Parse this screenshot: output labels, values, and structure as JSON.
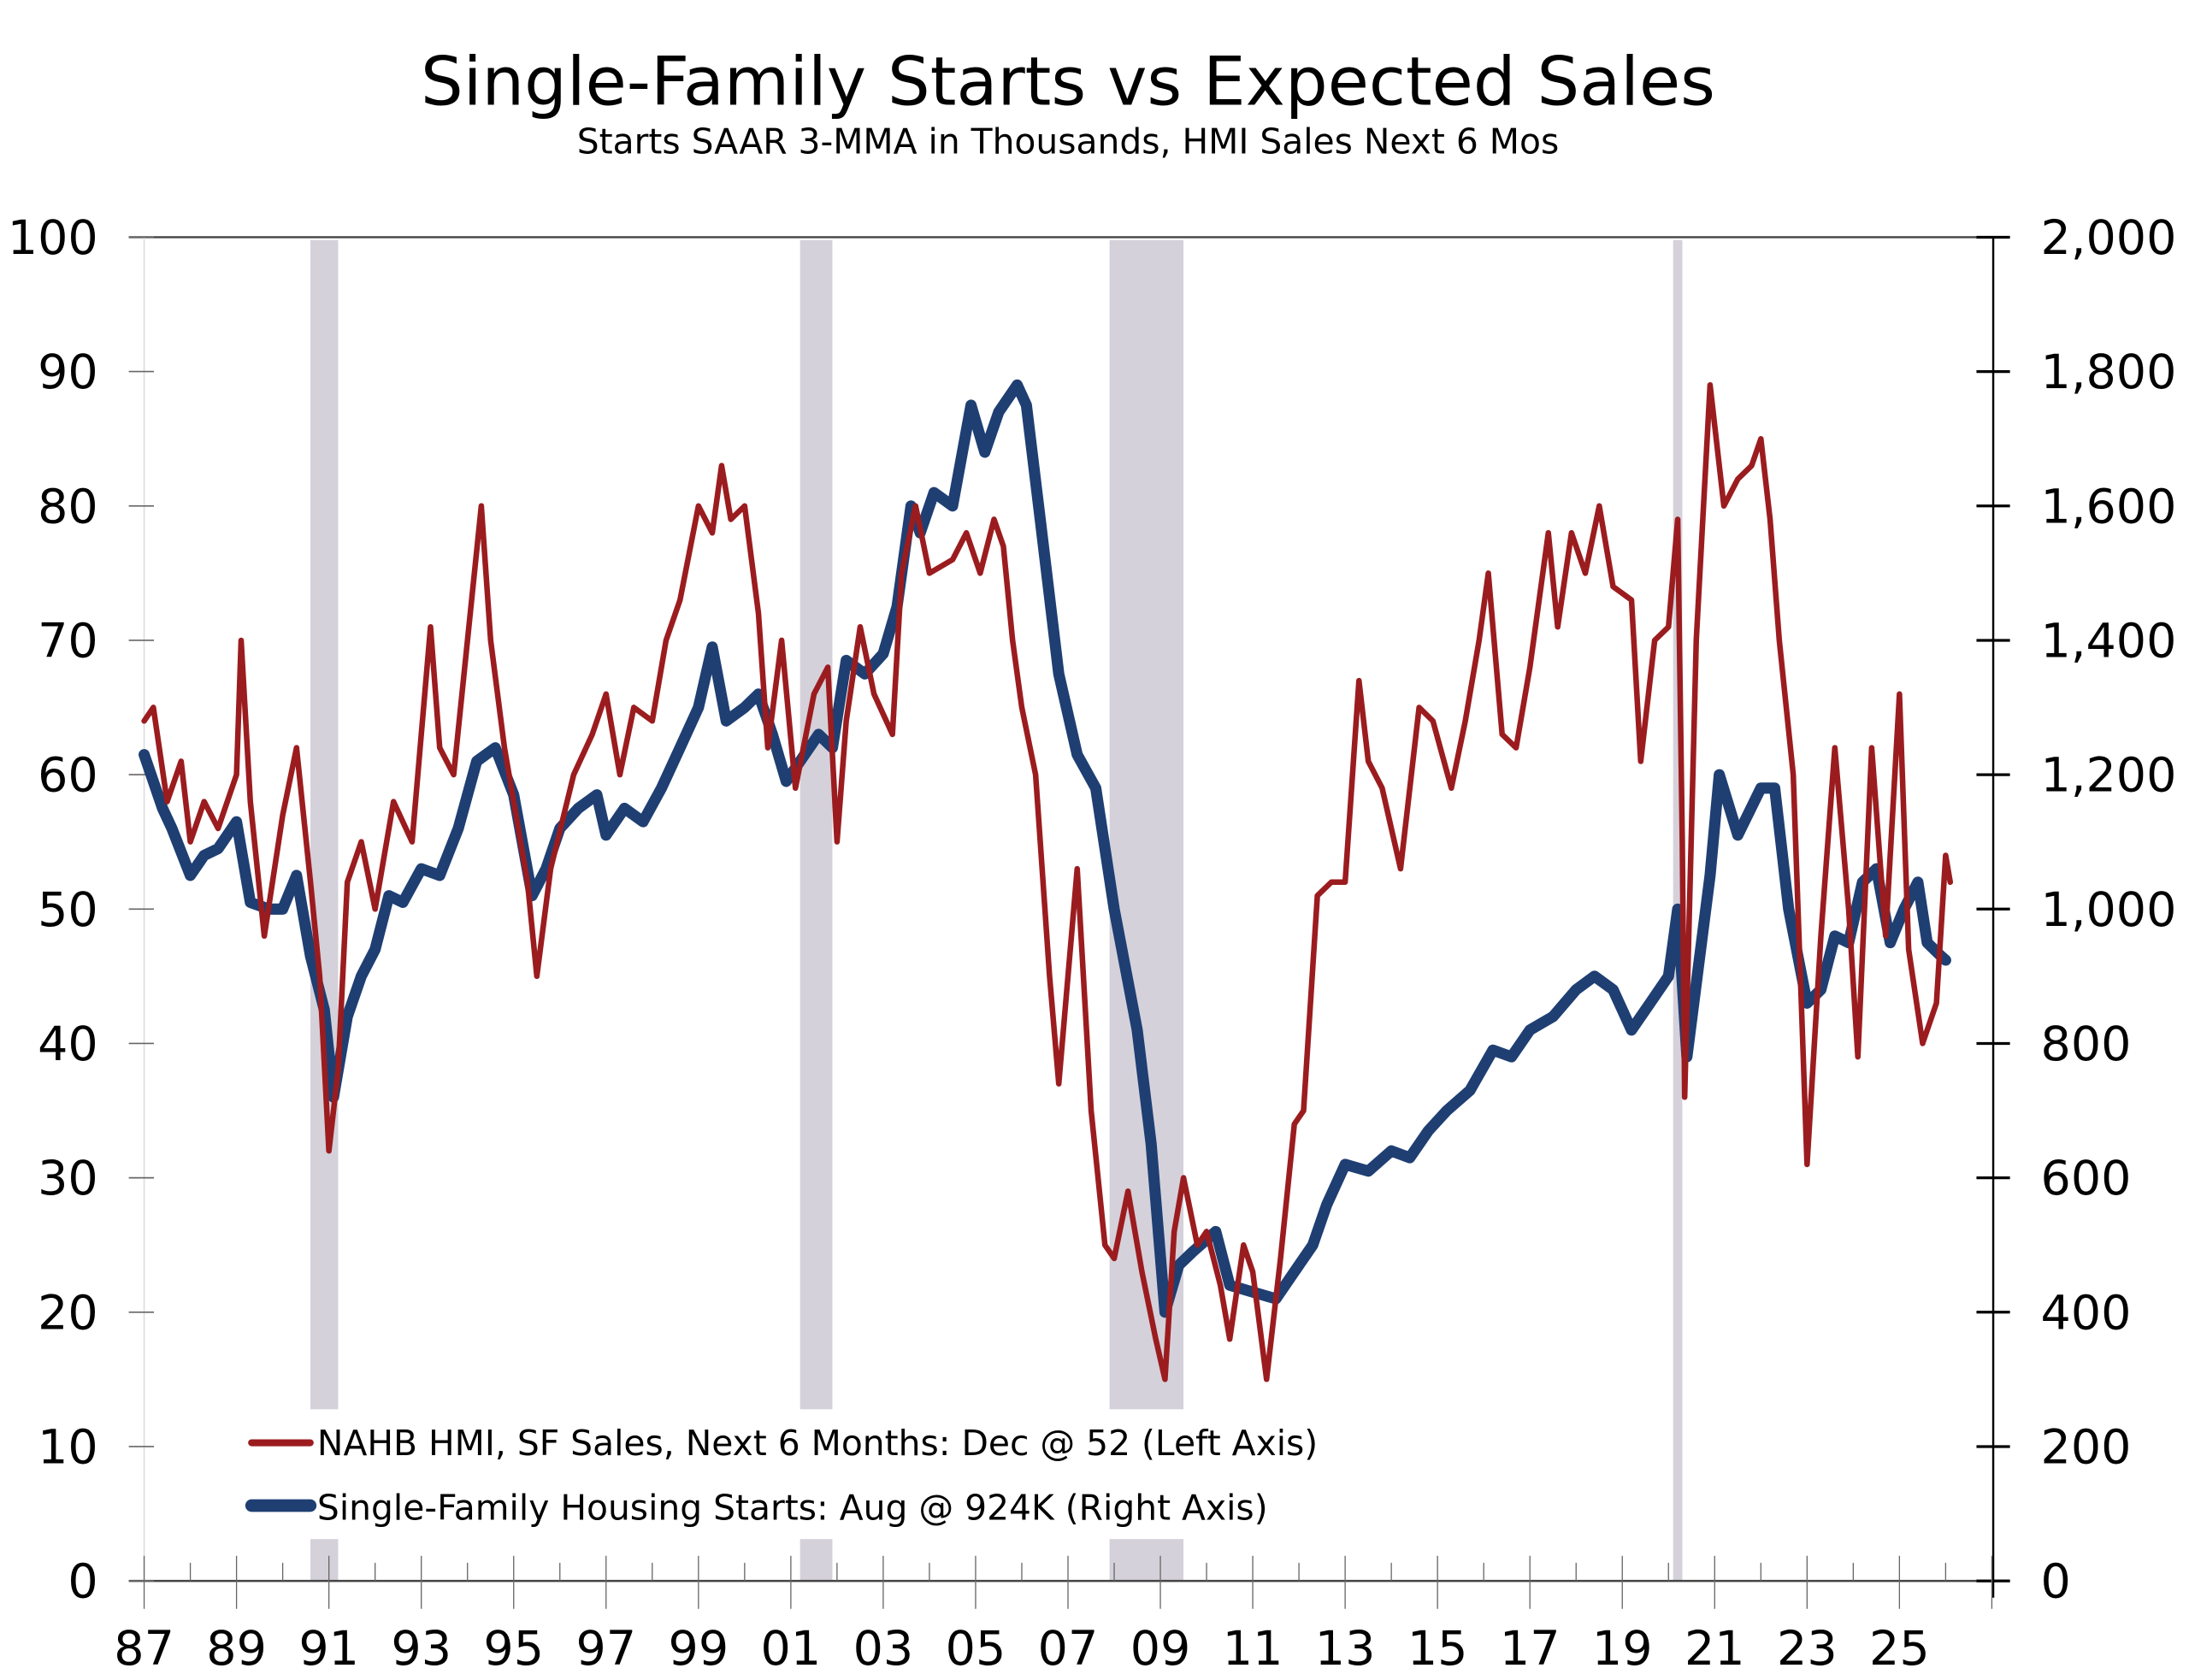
{
  "chart_data": {
    "type": "line",
    "title": "Single-Family Starts vs Expected Sales",
    "subtitle": "Starts SAAR 3-MMA in Thousands, HMI Sales Next 6 Mos",
    "xlim": [
      1987,
      2027
    ],
    "x_ticks": [
      {
        "year": 1987,
        "label": "87"
      },
      {
        "year": 1989,
        "label": "89"
      },
      {
        "year": 1991,
        "label": "91"
      },
      {
        "year": 1993,
        "label": "93"
      },
      {
        "year": 1995,
        "label": "95"
      },
      {
        "year": 1997,
        "label": "97"
      },
      {
        "year": 1999,
        "label": "99"
      },
      {
        "year": 2001,
        "label": "01"
      },
      {
        "year": 2003,
        "label": "03"
      },
      {
        "year": 2005,
        "label": "05"
      },
      {
        "year": 2007,
        "label": "07"
      },
      {
        "year": 2009,
        "label": "09"
      },
      {
        "year": 2011,
        "label": "11"
      },
      {
        "year": 2013,
        "label": "13"
      },
      {
        "year": 2015,
        "label": "15"
      },
      {
        "year": 2017,
        "label": "17"
      },
      {
        "year": 2019,
        "label": "19"
      },
      {
        "year": 2021,
        "label": "21"
      },
      {
        "year": 2023,
        "label": "23"
      },
      {
        "year": 2025,
        "label": "25"
      }
    ],
    "left_axis": {
      "ylim": [
        0,
        100
      ],
      "ticks": [
        "0",
        "10",
        "20",
        "30",
        "40",
        "50",
        "60",
        "70",
        "80",
        "90",
        "100"
      ]
    },
    "right_axis": {
      "ylim": [
        0,
        2000
      ],
      "ticks": [
        "0",
        "200",
        "400",
        "600",
        "800",
        "1,000",
        "1,200",
        "1,400",
        "1,600",
        "1,800",
        "2,000"
      ]
    },
    "recessions": [
      [
        1990.6,
        1991.2
      ],
      [
        2001.2,
        2001.9
      ],
      [
        2007.9,
        2009.5
      ],
      [
        2020.1,
        2020.3
      ]
    ],
    "colors": {
      "hmi": "#9b1c1f",
      "starts": "#1f3f73",
      "recession": "#d5d1da"
    },
    "series": [
      {
        "name": "NAHB HMI, SF Sales, Next 6 Months: Dec @ 52 (Left Axis)",
        "axis": "left",
        "points": [
          [
            1987.0,
            64
          ],
          [
            1987.2,
            65
          ],
          [
            1987.5,
            58
          ],
          [
            1987.8,
            61
          ],
          [
            1988.0,
            55
          ],
          [
            1988.3,
            58
          ],
          [
            1988.6,
            56
          ],
          [
            1989.0,
            60
          ],
          [
            1989.1,
            70
          ],
          [
            1989.3,
            58
          ],
          [
            1989.6,
            48
          ],
          [
            1990.0,
            57
          ],
          [
            1990.3,
            62
          ],
          [
            1990.6,
            52
          ],
          [
            1990.8,
            45
          ],
          [
            1991.0,
            32
          ],
          [
            1991.2,
            38
          ],
          [
            1991.4,
            52
          ],
          [
            1991.7,
            55
          ],
          [
            1992.0,
            50
          ],
          [
            1992.4,
            58
          ],
          [
            1992.8,
            55
          ],
          [
            1993.2,
            71
          ],
          [
            1993.4,
            62
          ],
          [
            1993.7,
            60
          ],
          [
            1994.0,
            70
          ],
          [
            1994.3,
            80
          ],
          [
            1994.5,
            70
          ],
          [
            1994.8,
            62
          ],
          [
            1995.3,
            52
          ],
          [
            1995.5,
            45
          ],
          [
            1995.8,
            53
          ],
          [
            1996.3,
            60
          ],
          [
            1996.7,
            63
          ],
          [
            1997.0,
            66
          ],
          [
            1997.3,
            60
          ],
          [
            1997.6,
            65
          ],
          [
            1998.0,
            64
          ],
          [
            1998.3,
            70
          ],
          [
            1998.6,
            73
          ],
          [
            1999.0,
            80
          ],
          [
            1999.3,
            78
          ],
          [
            1999.5,
            83
          ],
          [
            1999.7,
            79
          ],
          [
            2000.0,
            80
          ],
          [
            2000.3,
            72
          ],
          [
            2000.5,
            62
          ],
          [
            2000.8,
            70
          ],
          [
            2001.1,
            59
          ],
          [
            2001.5,
            66
          ],
          [
            2001.8,
            68
          ],
          [
            2002.0,
            55
          ],
          [
            2002.2,
            64
          ],
          [
            2002.5,
            71
          ],
          [
            2002.8,
            66
          ],
          [
            2003.2,
            63
          ],
          [
            2003.4,
            75
          ],
          [
            2003.7,
            80
          ],
          [
            2004.0,
            75
          ],
          [
            2004.5,
            76
          ],
          [
            2004.8,
            78
          ],
          [
            2005.1,
            75
          ],
          [
            2005.4,
            79
          ],
          [
            2005.6,
            77
          ],
          [
            2005.8,
            70
          ],
          [
            2006.0,
            65
          ],
          [
            2006.3,
            60
          ],
          [
            2006.6,
            45
          ],
          [
            2006.8,
            37
          ],
          [
            2007.0,
            45
          ],
          [
            2007.2,
            53
          ],
          [
            2007.5,
            35
          ],
          [
            2007.8,
            25
          ],
          [
            2008.0,
            24
          ],
          [
            2008.3,
            29
          ],
          [
            2008.6,
            23
          ],
          [
            2008.9,
            18
          ],
          [
            2009.1,
            15
          ],
          [
            2009.3,
            26
          ],
          [
            2009.5,
            30
          ],
          [
            2009.8,
            25
          ],
          [
            2010.0,
            26
          ],
          [
            2010.3,
            22
          ],
          [
            2010.5,
            18
          ],
          [
            2010.8,
            25
          ],
          [
            2011.0,
            23
          ],
          [
            2011.3,
            15
          ],
          [
            2011.6,
            24
          ],
          [
            2011.9,
            34
          ],
          [
            2012.1,
            35
          ],
          [
            2012.4,
            51
          ],
          [
            2012.7,
            52
          ],
          [
            2013.0,
            52
          ],
          [
            2013.3,
            67
          ],
          [
            2013.5,
            61
          ],
          [
            2013.8,
            59
          ],
          [
            2014.2,
            53
          ],
          [
            2014.6,
            65
          ],
          [
            2014.9,
            64
          ],
          [
            2015.3,
            59
          ],
          [
            2015.6,
            64
          ],
          [
            2015.9,
            70
          ],
          [
            2016.1,
            75
          ],
          [
            2016.4,
            63
          ],
          [
            2016.7,
            62
          ],
          [
            2017.0,
            68
          ],
          [
            2017.4,
            78
          ],
          [
            2017.6,
            71
          ],
          [
            2017.9,
            78
          ],
          [
            2018.2,
            75
          ],
          [
            2018.5,
            80
          ],
          [
            2018.8,
            74
          ],
          [
            2019.2,
            73
          ],
          [
            2019.4,
            61
          ],
          [
            2019.7,
            70
          ],
          [
            2020.0,
            71
          ],
          [
            2020.2,
            79
          ],
          [
            2020.3,
            55
          ],
          [
            2020.35,
            36
          ],
          [
            2020.6,
            70
          ],
          [
            2020.9,
            89
          ],
          [
            2021.2,
            80
          ],
          [
            2021.5,
            82
          ],
          [
            2021.8,
            83
          ],
          [
            2022.0,
            85
          ],
          [
            2022.2,
            79
          ],
          [
            2022.4,
            70
          ],
          [
            2022.7,
            60
          ],
          [
            2023.0,
            31
          ],
          [
            2023.3,
            48
          ],
          [
            2023.6,
            62
          ],
          [
            2023.9,
            50
          ],
          [
            2024.1,
            39
          ],
          [
            2024.4,
            62
          ],
          [
            2024.7,
            48
          ],
          [
            2025.0,
            66
          ],
          [
            2025.2,
            47
          ],
          [
            2025.5,
            40
          ],
          [
            2025.8,
            43
          ],
          [
            2026.0,
            54
          ],
          [
            2026.1,
            52
          ]
        ]
      },
      {
        "name": "Single-Family Housing Starts: Aug @ 924K (Right Axis)",
        "axis": "right",
        "points": [
          [
            1987.0,
            1230
          ],
          [
            1987.4,
            1150
          ],
          [
            1987.6,
            1120
          ],
          [
            1988.0,
            1050
          ],
          [
            1988.3,
            1080
          ],
          [
            1988.6,
            1090
          ],
          [
            1989.0,
            1130
          ],
          [
            1989.3,
            1010
          ],
          [
            1989.7,
            1000
          ],
          [
            1990.0,
            1000
          ],
          [
            1990.3,
            1050
          ],
          [
            1990.6,
            930
          ],
          [
            1990.9,
            850
          ],
          [
            1991.1,
            720
          ],
          [
            1991.4,
            840
          ],
          [
            1991.7,
            900
          ],
          [
            1992.0,
            940
          ],
          [
            1992.3,
            1020
          ],
          [
            1992.6,
            1010
          ],
          [
            1993.0,
            1060
          ],
          [
            1993.4,
            1050
          ],
          [
            1993.8,
            1120
          ],
          [
            1994.2,
            1220
          ],
          [
            1994.6,
            1240
          ],
          [
            1995.0,
            1170
          ],
          [
            1995.4,
            1020
          ],
          [
            1995.7,
            1060
          ],
          [
            1996.0,
            1120
          ],
          [
            1996.4,
            1150
          ],
          [
            1996.8,
            1170
          ],
          [
            1997.0,
            1110
          ],
          [
            1997.4,
            1150
          ],
          [
            1997.8,
            1130
          ],
          [
            1998.2,
            1180
          ],
          [
            1998.6,
            1240
          ],
          [
            1999.0,
            1300
          ],
          [
            1999.3,
            1390
          ],
          [
            1999.6,
            1280
          ],
          [
            2000.0,
            1300
          ],
          [
            2000.3,
            1320
          ],
          [
            2000.6,
            1260
          ],
          [
            2000.9,
            1190
          ],
          [
            2001.2,
            1220
          ],
          [
            2001.6,
            1260
          ],
          [
            2001.9,
            1240
          ],
          [
            2002.2,
            1370
          ],
          [
            2002.6,
            1350
          ],
          [
            2003.0,
            1380
          ],
          [
            2003.3,
            1450
          ],
          [
            2003.6,
            1600
          ],
          [
            2003.8,
            1560
          ],
          [
            2004.1,
            1620
          ],
          [
            2004.5,
            1600
          ],
          [
            2004.9,
            1750
          ],
          [
            2005.2,
            1680
          ],
          [
            2005.5,
            1740
          ],
          [
            2005.9,
            1780
          ],
          [
            2006.1,
            1750
          ],
          [
            2006.4,
            1580
          ],
          [
            2006.8,
            1350
          ],
          [
            2007.2,
            1230
          ],
          [
            2007.6,
            1180
          ],
          [
            2008.0,
            1000
          ],
          [
            2008.5,
            820
          ],
          [
            2008.8,
            650
          ],
          [
            2009.1,
            400
          ],
          [
            2009.4,
            470
          ],
          [
            2009.7,
            490
          ],
          [
            2010.2,
            520
          ],
          [
            2010.5,
            440
          ],
          [
            2011.0,
            430
          ],
          [
            2011.5,
            420
          ],
          [
            2011.9,
            460
          ],
          [
            2012.3,
            500
          ],
          [
            2012.6,
            560
          ],
          [
            2013.0,
            620
          ],
          [
            2013.5,
            610
          ],
          [
            2014.0,
            640
          ],
          [
            2014.4,
            630
          ],
          [
            2014.8,
            670
          ],
          [
            2015.2,
            700
          ],
          [
            2015.7,
            730
          ],
          [
            2016.2,
            790
          ],
          [
            2016.6,
            780
          ],
          [
            2017.0,
            820
          ],
          [
            2017.5,
            840
          ],
          [
            2018.0,
            880
          ],
          [
            2018.4,
            900
          ],
          [
            2018.8,
            880
          ],
          [
            2019.2,
            820
          ],
          [
            2019.6,
            860
          ],
          [
            2020.0,
            900
          ],
          [
            2020.2,
            1000
          ],
          [
            2020.4,
            780
          ],
          [
            2020.9,
            1050
          ],
          [
            2021.1,
            1200
          ],
          [
            2021.5,
            1110
          ],
          [
            2022.0,
            1180
          ],
          [
            2022.3,
            1180
          ],
          [
            2022.6,
            1000
          ],
          [
            2023.0,
            860
          ],
          [
            2023.3,
            880
          ],
          [
            2023.6,
            960
          ],
          [
            2023.9,
            950
          ],
          [
            2024.2,
            1040
          ],
          [
            2024.5,
            1060
          ],
          [
            2024.8,
            950
          ],
          [
            2025.1,
            1000
          ],
          [
            2025.4,
            1040
          ],
          [
            2025.6,
            950
          ],
          [
            2025.9,
            930
          ],
          [
            2026.0,
            924
          ]
        ]
      }
    ],
    "legend_placement": "bottom-left"
  }
}
